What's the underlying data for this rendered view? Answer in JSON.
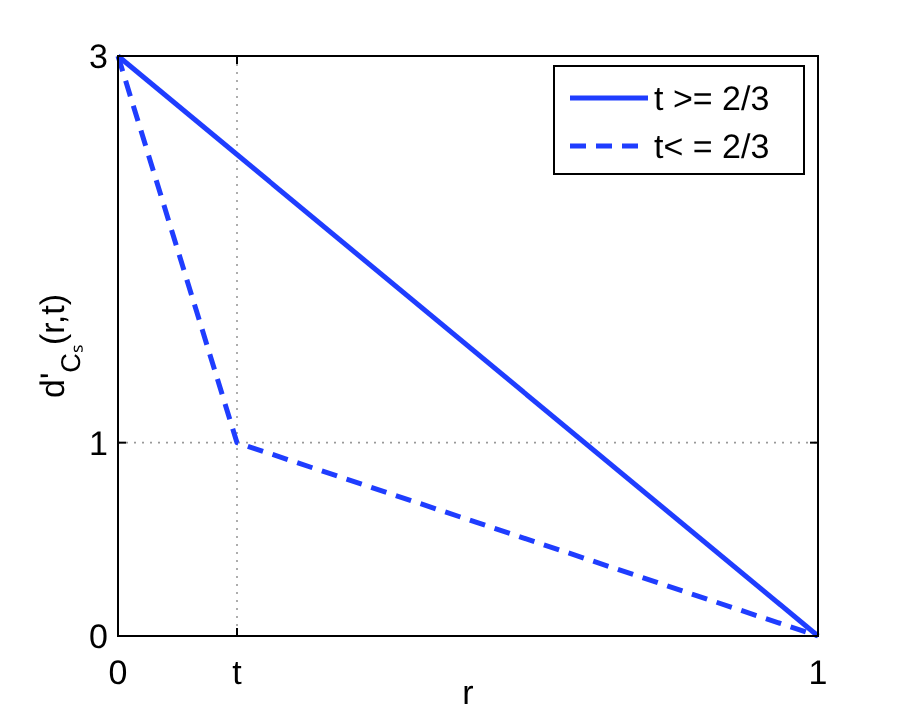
{
  "chart_data": {
    "type": "line",
    "xlabel": "r",
    "ylabel": "d'$_{Cₛ}$(r,t)",
    "xlim": [
      0,
      1
    ],
    "ylim": [
      0,
      3
    ],
    "xticks": [
      0,
      {
        "value": 0.17,
        "label": "t"
      },
      1
    ],
    "yticks": [
      0,
      1,
      3
    ],
    "grid": true,
    "legend": "top right",
    "marker": "none",
    "series": [
      {
        "name": "t >= 2/3",
        "color": "#1f3dff",
        "x": [
          0,
          1
        ],
        "values": [
          3,
          0
        ],
        "line_style": "solid"
      },
      {
        "name": "t< = 2/3",
        "color": "#1f3dff",
        "x": [
          0,
          0.17,
          1
        ],
        "values": [
          3,
          1,
          0
        ],
        "line_style": "dashed"
      }
    ]
  }
}
